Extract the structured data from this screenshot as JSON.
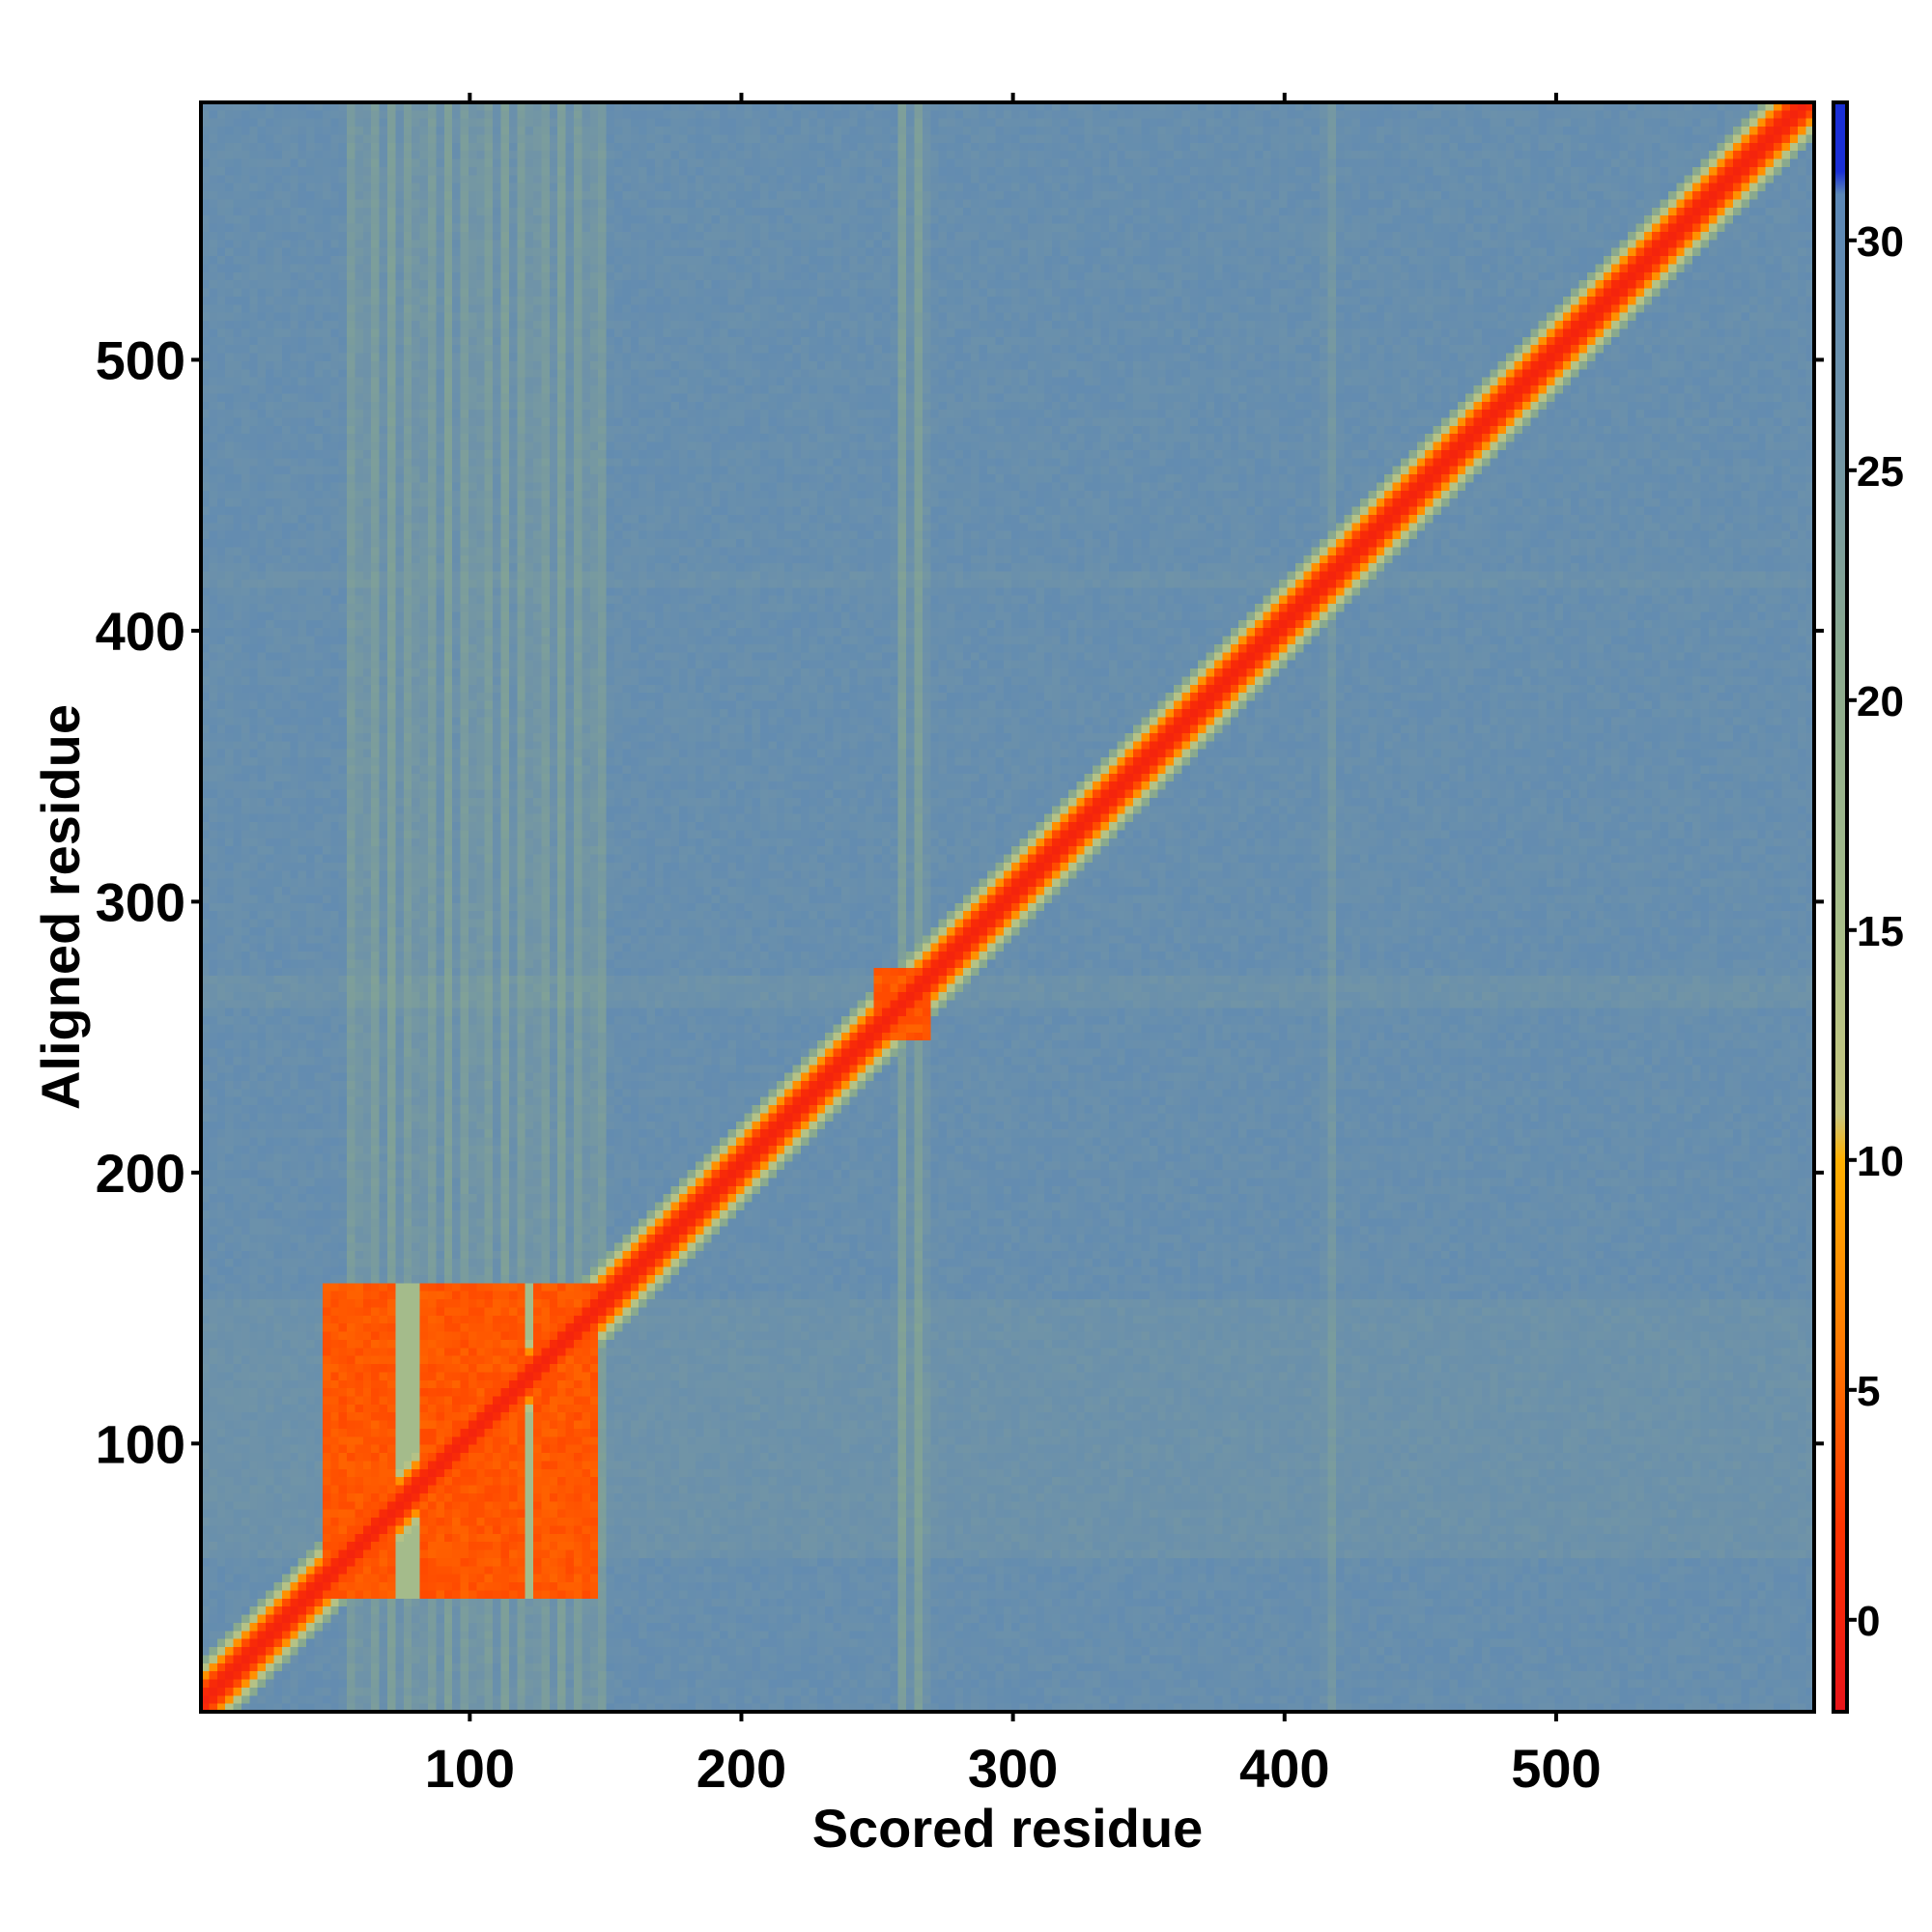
{
  "chart_data": {
    "type": "heatmap",
    "title": "",
    "xlabel": "Scored residue",
    "ylabel": "Aligned residue",
    "xlim": [
      1,
      595
    ],
    "ylim": [
      1,
      595
    ],
    "x_ticks": [
      100,
      200,
      300,
      400,
      500
    ],
    "y_ticks": [
      100,
      200,
      300,
      400,
      500
    ],
    "colorbar": {
      "range": [
        -2,
        33
      ],
      "ticks": [
        0,
        5,
        10,
        15,
        20,
        25,
        30
      ],
      "stops": [
        {
          "value": -2,
          "color": "#e8141a"
        },
        {
          "value": 2,
          "color": "#ff3300"
        },
        {
          "value": 6,
          "color": "#ff7a00"
        },
        {
          "value": 10,
          "color": "#ffb000"
        },
        {
          "value": 11,
          "color": "#c8c77e"
        },
        {
          "value": 15,
          "color": "#a9bf8a"
        },
        {
          "value": 21,
          "color": "#8aa98e"
        },
        {
          "value": 26,
          "color": "#6f93a8"
        },
        {
          "value": 31,
          "color": "#5b87b6"
        },
        {
          "value": 31.5,
          "color": "#1a2fd6"
        },
        {
          "value": 33,
          "color": "#1a2fd6"
        }
      ]
    },
    "background_value": 28,
    "diagonal_value": 0,
    "features": [
      {
        "kind": "diagonal",
        "from": 1,
        "to": 595,
        "core_value": 0,
        "halfwidth_residues": 8
      },
      {
        "kind": "block",
        "x": [
          46,
          148
        ],
        "y": [
          40,
          158
        ],
        "value": 4,
        "gaps_x": [
          [
            73,
            83
          ],
          [
            120,
            124
          ]
        ]
      },
      {
        "kind": "block",
        "x": [
          250,
          270
        ],
        "y": [
          248,
          274
        ],
        "value": 4
      },
      {
        "kind": "stripe_vertical",
        "x": [
          55,
          150
        ],
        "value": 20
      },
      {
        "kind": "stripe_vertical",
        "x": [
          258,
          270
        ],
        "value": 20
      },
      {
        "kind": "stripe_vertical",
        "x": [
          415,
          420
        ],
        "value": 22
      }
    ]
  }
}
